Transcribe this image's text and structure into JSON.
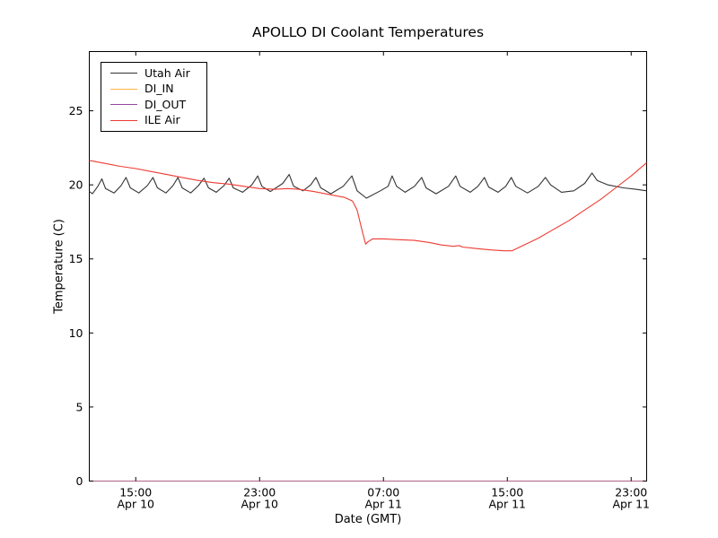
{
  "figure": {
    "title": "APOLLO DI Coolant Temperatures",
    "xlabel": "Date (GMT)",
    "ylabel": "Temperature (C)",
    "background_color": "#ffffff",
    "spine_color": "#000000"
  },
  "chart_data": {
    "type": "line",
    "title": "APOLLO DI Coolant Temperatures",
    "xlabel": "Date (GMT)",
    "ylabel": "Temperature (C)",
    "grid": false,
    "legend_position": "upper left",
    "x_unit": "hours since Apr 10 12:00 GMT",
    "xlim": [
      0,
      36
    ],
    "ylim": [
      0,
      29
    ],
    "y_ticks": [
      0,
      5,
      10,
      15,
      20,
      25
    ],
    "x_ticks": [
      {
        "hour": 3,
        "time": "15:00",
        "date": "Apr 10"
      },
      {
        "hour": 11,
        "time": "23:00",
        "date": "Apr 10"
      },
      {
        "hour": 19,
        "time": "07:00",
        "date": "Apr 11"
      },
      {
        "hour": 27,
        "time": "15:00",
        "date": "Apr 11"
      },
      {
        "hour": 35,
        "time": "23:00",
        "date": "Apr 11"
      }
    ],
    "series": [
      {
        "name": "Utah Air",
        "color": "#333333",
        "opacity": 1,
        "points": [
          [
            0,
            19.55
          ],
          [
            0.2,
            19.4
          ],
          [
            0.55,
            19.9
          ],
          [
            0.81,
            20.4
          ],
          [
            1.05,
            19.75
          ],
          [
            1.6,
            19.45
          ],
          [
            2.05,
            19.95
          ],
          [
            2.37,
            20.5
          ],
          [
            2.65,
            19.8
          ],
          [
            3.2,
            19.45
          ],
          [
            3.75,
            19.95
          ],
          [
            4.11,
            20.5
          ],
          [
            4.4,
            19.8
          ],
          [
            4.95,
            19.45
          ],
          [
            5.4,
            19.95
          ],
          [
            5.73,
            20.5
          ],
          [
            6.0,
            19.8
          ],
          [
            6.55,
            19.45
          ],
          [
            7.05,
            19.95
          ],
          [
            7.41,
            20.45
          ],
          [
            7.7,
            19.8
          ],
          [
            8.2,
            19.5
          ],
          [
            8.7,
            19.95
          ],
          [
            9.03,
            20.45
          ],
          [
            9.3,
            19.8
          ],
          [
            9.9,
            19.5
          ],
          [
            10.5,
            20.0
          ],
          [
            10.88,
            20.6
          ],
          [
            11.15,
            19.9
          ],
          [
            11.7,
            19.55
          ],
          [
            12.5,
            20.1
          ],
          [
            12.91,
            20.7
          ],
          [
            13.2,
            19.9
          ],
          [
            13.8,
            19.6
          ],
          [
            14.3,
            20.0
          ],
          [
            14.64,
            20.5
          ],
          [
            14.95,
            19.8
          ],
          [
            15.6,
            19.4
          ],
          [
            16.4,
            19.9
          ],
          [
            16.96,
            20.6
          ],
          [
            17.3,
            19.6
          ],
          [
            17.9,
            19.1
          ],
          [
            18.8,
            19.6
          ],
          [
            19.3,
            19.9
          ],
          [
            19.56,
            20.6
          ],
          [
            19.85,
            19.9
          ],
          [
            20.4,
            19.5
          ],
          [
            21.0,
            19.9
          ],
          [
            21.47,
            20.5
          ],
          [
            21.75,
            19.8
          ],
          [
            22.4,
            19.4
          ],
          [
            23.2,
            19.9
          ],
          [
            23.67,
            20.6
          ],
          [
            23.95,
            19.9
          ],
          [
            24.6,
            19.5
          ],
          [
            25.1,
            19.9
          ],
          [
            25.52,
            20.5
          ],
          [
            25.8,
            19.85
          ],
          [
            26.4,
            19.5
          ],
          [
            26.9,
            19.9
          ],
          [
            27.26,
            20.5
          ],
          [
            27.55,
            19.9
          ],
          [
            28.3,
            19.45
          ],
          [
            29.0,
            19.9
          ],
          [
            29.46,
            20.5
          ],
          [
            29.8,
            20.0
          ],
          [
            30.5,
            19.5
          ],
          [
            31.3,
            19.6
          ],
          [
            32.0,
            20.1
          ],
          [
            32.47,
            20.8
          ],
          [
            32.8,
            20.3
          ],
          [
            33.5,
            20.0
          ],
          [
            34.5,
            19.8
          ],
          [
            35.3,
            19.7
          ],
          [
            36,
            19.6
          ]
        ]
      },
      {
        "name": "DI_IN",
        "color": "#ffb347",
        "opacity": 1,
        "points": [
          [
            0,
            0
          ],
          [
            36,
            0
          ]
        ]
      },
      {
        "name": "DI_OUT",
        "color": "#93479f",
        "opacity": 0.75,
        "points": [
          [
            0,
            0
          ],
          [
            36,
            0
          ]
        ]
      },
      {
        "name": "ILE Air",
        "color": "#ee3b32",
        "opacity": 1,
        "points": [
          [
            0,
            21.65
          ],
          [
            1,
            21.45
          ],
          [
            2,
            21.25
          ],
          [
            3,
            21.1
          ],
          [
            4,
            20.9
          ],
          [
            5,
            20.7
          ],
          [
            6,
            20.5
          ],
          [
            7,
            20.3
          ],
          [
            8,
            20.15
          ],
          [
            9,
            20.05
          ],
          [
            10,
            19.9
          ],
          [
            11,
            19.75
          ],
          [
            12,
            19.7
          ],
          [
            12.8,
            19.75
          ],
          [
            13.5,
            19.7
          ],
          [
            14.5,
            19.55
          ],
          [
            15.5,
            19.35
          ],
          [
            16.5,
            19.15
          ],
          [
            17.0,
            18.9
          ],
          [
            17.3,
            18.3
          ],
          [
            17.6,
            17.0
          ],
          [
            17.85,
            16.0
          ],
          [
            18.0,
            16.15
          ],
          [
            18.3,
            16.35
          ],
          [
            19,
            16.35
          ],
          [
            20,
            16.3
          ],
          [
            21,
            16.25
          ],
          [
            22,
            16.1
          ],
          [
            22.7,
            15.95
          ],
          [
            23.5,
            15.85
          ],
          [
            23.9,
            15.9
          ],
          [
            24.1,
            15.8
          ],
          [
            25,
            15.7
          ],
          [
            26,
            15.6
          ],
          [
            26.8,
            15.55
          ],
          [
            27.3,
            15.55
          ],
          [
            28,
            15.9
          ],
          [
            29,
            16.4
          ],
          [
            30,
            17.0
          ],
          [
            31,
            17.6
          ],
          [
            32,
            18.3
          ],
          [
            33,
            19.0
          ],
          [
            34,
            19.8
          ],
          [
            35,
            20.6
          ],
          [
            36,
            21.5
          ]
        ]
      }
    ]
  },
  "legend": {
    "entries": [
      "Utah Air",
      "DI_IN",
      "DI_OUT",
      "ILE Air"
    ]
  }
}
